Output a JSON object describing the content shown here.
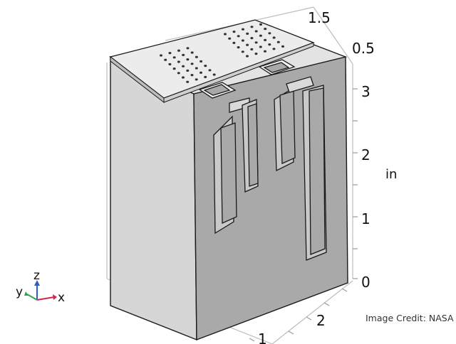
{
  "axis_ticks": {
    "x": [
      "1",
      "2"
    ],
    "y": [
      "0.5",
      "1.5"
    ],
    "z": [
      "0",
      "1",
      "2",
      "3"
    ]
  },
  "unit_label": "in",
  "triad": {
    "x": "x",
    "y": "y",
    "z": "z"
  },
  "credit": "Image Credit: NASA",
  "colors": {
    "top_face": "#e9e9e9",
    "left_face": "#d6d6d6",
    "front_face": "#a9a9a9",
    "slot_inner": "#c9c9c9",
    "edge": "#1a1a1a",
    "axis_x": "#d0254f",
    "axis_y": "#2aa84a",
    "axis_z": "#2b5fc8"
  }
}
